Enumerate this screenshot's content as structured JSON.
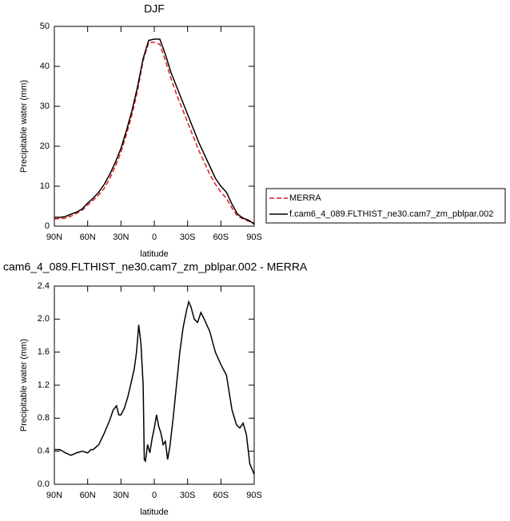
{
  "chart_data": [
    {
      "type": "line",
      "title": "DJF",
      "xlabel": "latitude",
      "ylabel": "Precipitable water (mm)",
      "x": [
        90,
        85,
        80,
        75,
        70,
        65,
        60,
        55,
        50,
        45,
        40,
        35,
        30,
        25,
        20,
        15,
        10,
        5,
        0,
        -5,
        -10,
        -15,
        -20,
        -25,
        -30,
        -35,
        -40,
        -45,
        -50,
        -55,
        -60,
        -65,
        -70,
        -75,
        -80,
        -85,
        -90
      ],
      "series": [
        {
          "name": "MERRA",
          "color": "#e41a1c",
          "dash": true,
          "values": [
            1.8,
            1.9,
            2.0,
            2.5,
            3.2,
            4.0,
            5.3,
            6.5,
            7.8,
            9.5,
            12,
            15,
            18.5,
            23,
            28,
            34,
            41.5,
            46,
            46,
            45.5,
            41.5,
            37,
            33,
            29.5,
            26,
            22.5,
            19,
            16,
            13,
            10.5,
            8.5,
            7,
            4.5,
            2.5,
            1.8,
            1.2,
            0.8
          ]
        },
        {
          "name": "f.cam6_4_089.FLTHIST_ne30.cam7_zm_pblpar.002",
          "color": "#000000",
          "dash": false,
          "values": [
            2.2,
            2.2,
            2.4,
            3.0,
            3.5,
            4.3,
            5.8,
            7.0,
            8.5,
            10.5,
            13,
            16,
            19.5,
            24,
            29,
            35,
            42,
            46.5,
            46.8,
            46.8,
            43,
            38.5,
            35,
            31.5,
            28,
            24.5,
            21,
            18,
            15,
            12,
            10,
            8.5,
            5.5,
            3,
            2,
            1.5,
            0.5
          ]
        }
      ],
      "xlim": [
        90,
        -90
      ],
      "xticks": [
        {
          "value": 90,
          "label": "90N"
        },
        {
          "value": 60,
          "label": "60N"
        },
        {
          "value": 30,
          "label": "30N"
        },
        0,
        {
          "value": -30,
          "label": "30S"
        },
        {
          "value": -60,
          "label": "60S"
        },
        {
          "value": -90,
          "label": "90S"
        }
      ],
      "ylim": [
        0,
        50
      ],
      "yticks": [
        0,
        10,
        20,
        30,
        40,
        50
      ],
      "legend": "right"
    },
    {
      "type": "line",
      "title": "cam6_4_089.FLTHIST_ne30.cam7_zm_pblpar.002 - MERRA",
      "xlabel": "latitude",
      "ylabel": "Precipitable water (mm)",
      "x": [
        90,
        85,
        80,
        75,
        70,
        65,
        60,
        57,
        55,
        50,
        45,
        40,
        37,
        34,
        32,
        30,
        27,
        24,
        21,
        18,
        16,
        14,
        12,
        10,
        9,
        8,
        6,
        4,
        2,
        0,
        -2,
        -4,
        -6,
        -8,
        -10,
        -12,
        -14,
        -17,
        -20,
        -23,
        -26,
        -29,
        -31,
        -33,
        -36,
        -39,
        -42,
        -45,
        -50,
        -55,
        -60,
        -65,
        -70,
        -74,
        -77,
        -80,
        -83,
        -86,
        -90
      ],
      "series": [
        {
          "color": "#000000",
          "dash": false,
          "values": [
            0.42,
            0.42,
            0.38,
            0.35,
            0.38,
            0.4,
            0.38,
            0.42,
            0.42,
            0.48,
            0.62,
            0.78,
            0.9,
            0.95,
            0.84,
            0.84,
            0.92,
            1.05,
            1.22,
            1.4,
            1.6,
            1.93,
            1.7,
            1.2,
            0.3,
            0.28,
            0.48,
            0.38,
            0.55,
            0.68,
            0.84,
            0.7,
            0.62,
            0.48,
            0.52,
            0.3,
            0.45,
            0.8,
            1.2,
            1.6,
            1.9,
            2.1,
            2.21,
            2.15,
            2.0,
            1.96,
            2.08,
            2.0,
            1.85,
            1.6,
            1.45,
            1.32,
            0.9,
            0.72,
            0.68,
            0.74,
            0.6,
            0.25,
            0.12
          ]
        }
      ],
      "xlim": [
        90,
        -90
      ],
      "xticks": [
        {
          "value": 90,
          "label": "90N"
        },
        {
          "value": 60,
          "label": "60N"
        },
        {
          "value": 30,
          "label": "30N"
        },
        0,
        {
          "value": -30,
          "label": "30S"
        },
        {
          "value": -60,
          "label": "60S"
        },
        {
          "value": -90,
          "label": "90S"
        }
      ],
      "ylim": [
        0,
        2.4
      ],
      "yticks": [
        {
          "value": 0,
          "label": "0.0"
        },
        0.4,
        0.8,
        1.2,
        1.6,
        {
          "value": 2.0,
          "label": "2.0"
        },
        2.4
      ]
    }
  ]
}
